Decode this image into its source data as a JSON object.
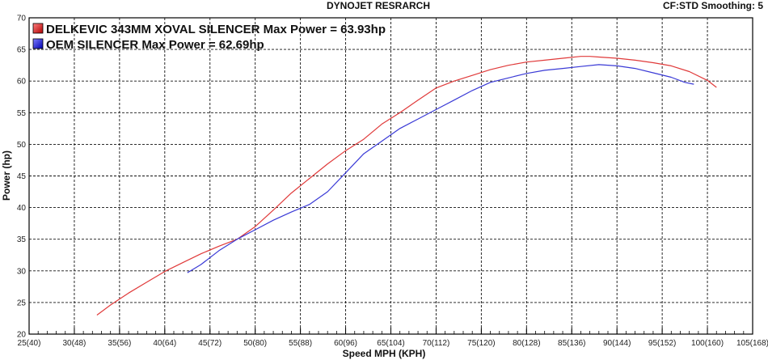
{
  "header": {
    "title": "DYNOJET RESRARCH",
    "settings": "CF:STD Smoothing: 5"
  },
  "chart_data": {
    "type": "line",
    "title": "DYNOJET RESRARCH",
    "xlabel": "Speed MPH (KPH)",
    "ylabel": "Power (hp)",
    "xlim": [
      25,
      105
    ],
    "ylim": [
      20,
      70
    ],
    "x_ticks": [
      25,
      30,
      35,
      40,
      45,
      50,
      55,
      60,
      65,
      70,
      75,
      80,
      85,
      90,
      95,
      100,
      105
    ],
    "x_tick_labels": [
      "25(40)",
      "30(48)",
      "35(56)",
      "40(64)",
      "45(72)",
      "50(80)",
      "55(88)",
      "60(96)",
      "65(104)",
      "70(112)",
      "75(120)",
      "80(128)",
      "85(136)",
      "90(144)",
      "95(152)",
      "100(160)",
      "105(168)"
    ],
    "y_ticks": [
      20,
      25,
      30,
      35,
      40,
      45,
      50,
      55,
      60,
      65,
      70
    ],
    "y_tick_labels": [
      "20",
      "25",
      "30",
      "35",
      "40",
      "45",
      "50",
      "55",
      "60",
      "65",
      "70"
    ],
    "grid": true,
    "legend": "top-left",
    "series": [
      {
        "name": "DELKEVIC 343MM XOVAL SILENCER",
        "legend_text": "DELKEVIC 343MM XOVAL SILENCER Max Power = 63.93hp",
        "color": "#e03a3a",
        "x": [
          32.5,
          34,
          36,
          38,
          40,
          42,
          44,
          46,
          48,
          50,
          52,
          54,
          56,
          58,
          60,
          62,
          64,
          66,
          68,
          70,
          72,
          74,
          76,
          78,
          80,
          82,
          84,
          86,
          87,
          88,
          90,
          92,
          94,
          96,
          98,
          100,
          101
        ],
        "y": [
          23.0,
          24.6,
          26.5,
          28.2,
          29.9,
          31.3,
          32.7,
          33.9,
          35.0,
          37.0,
          39.6,
          42.3,
          44.6,
          46.9,
          49.0,
          50.8,
          53.2,
          55.0,
          57.0,
          58.9,
          60.0,
          60.9,
          61.8,
          62.5,
          63.0,
          63.3,
          63.6,
          63.9,
          63.9,
          63.8,
          63.6,
          63.3,
          62.9,
          62.4,
          61.5,
          60.1,
          59.0
        ]
      },
      {
        "name": "OEM SILENCER",
        "legend_text": "OEM SILENCER Max Power = 62.69hp",
        "color": "#3a3ad6",
        "x": [
          42.5,
          44,
          46,
          48,
          50,
          52,
          54,
          56,
          58,
          60,
          62,
          64,
          66,
          68,
          70,
          72,
          74,
          76,
          78,
          80,
          82,
          84,
          86,
          88,
          90,
          92,
          94,
          96,
          97.5,
          98.5
        ],
        "y": [
          29.7,
          31.0,
          33.2,
          35.0,
          36.5,
          38.0,
          39.3,
          40.5,
          42.5,
          45.5,
          48.5,
          50.5,
          52.5,
          54.0,
          55.5,
          57.0,
          58.5,
          59.8,
          60.5,
          61.2,
          61.7,
          62.0,
          62.3,
          62.6,
          62.4,
          62.0,
          61.3,
          60.6,
          59.8,
          59.5
        ]
      }
    ]
  }
}
